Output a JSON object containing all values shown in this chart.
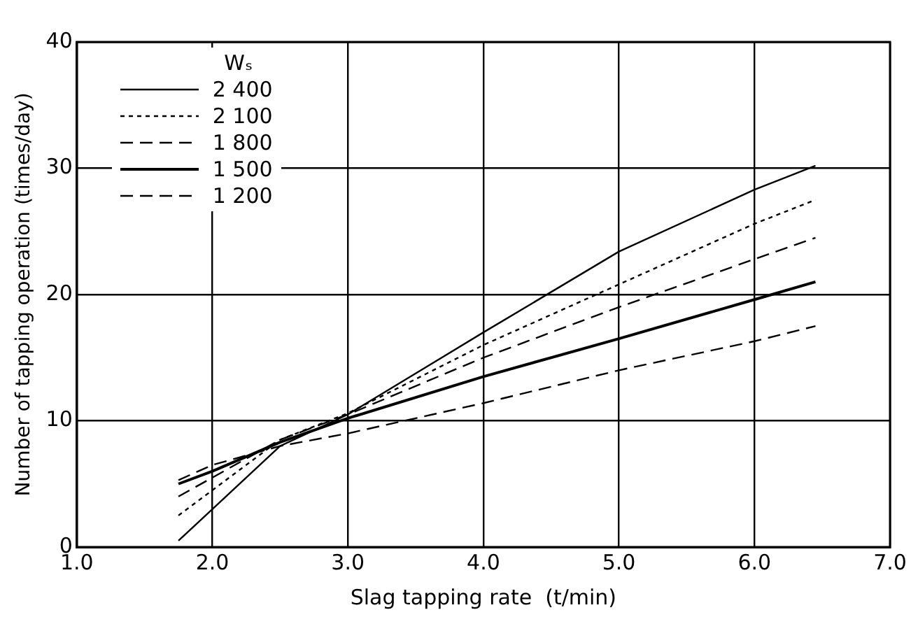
{
  "chart_data": {
    "type": "line",
    "xlabel": "Slag tapping rate  (t/min)",
    "ylabel": "Number of tapping operation (times/day)",
    "legend_title": "Wₛ",
    "legend": "top left",
    "grid": true,
    "marker": "none",
    "xlim": [
      1,
      7
    ],
    "xticks": [
      {
        "value": 1,
        "label": "1.0"
      },
      {
        "value": 2,
        "label": "2.0"
      },
      {
        "value": 3,
        "label": "3.0"
      },
      {
        "value": 4,
        "label": "4.0"
      },
      {
        "value": 5,
        "label": "5.0"
      },
      {
        "value": 6,
        "label": "6.0"
      },
      {
        "value": 7,
        "label": "7.0"
      }
    ],
    "ylim": [
      0,
      40
    ],
    "yticks": [
      0,
      10,
      20,
      30,
      40
    ],
    "series": [
      {
        "name": "2 400",
        "color": "#000000",
        "line_style": "solid",
        "x": [
          1.75,
          2,
          2.5,
          3,
          4,
          5,
          6,
          6.45
        ],
        "values": [
          0.5,
          3,
          8,
          10.5,
          17,
          23.4,
          28.3,
          30.2
        ]
      },
      {
        "name": "2 100",
        "color": "#000000",
        "line_style": "dotted",
        "x": [
          1.75,
          2,
          2.5,
          3,
          4,
          5,
          6,
          6.45
        ],
        "values": [
          2.5,
          4.5,
          8.5,
          10.6,
          16,
          20.8,
          25.6,
          27.5
        ]
      },
      {
        "name": "1 800",
        "color": "#000000",
        "line_style": "dashed",
        "x": [
          1.75,
          2,
          2.5,
          3,
          4,
          5,
          6,
          6.45
        ],
        "values": [
          4,
          5.5,
          8.5,
          10.5,
          15,
          19,
          22.8,
          24.5
        ]
      },
      {
        "name": "1 500",
        "color": "#000000",
        "line_style": "solid",
        "x": [
          1.75,
          2,
          2.5,
          3,
          4,
          5,
          6,
          6.45
        ],
        "values": [
          5,
          6,
          8.3,
          10.2,
          13.5,
          16.5,
          19.6,
          21
        ]
      },
      {
        "name": "1 200",
        "color": "#000000",
        "line_style": "dashed",
        "x": [
          1.75,
          2,
          2.5,
          3,
          4,
          5,
          6,
          6.45
        ],
        "values": [
          5.3,
          6.5,
          8,
          9,
          11.4,
          14,
          16.3,
          17.5
        ]
      }
    ]
  }
}
